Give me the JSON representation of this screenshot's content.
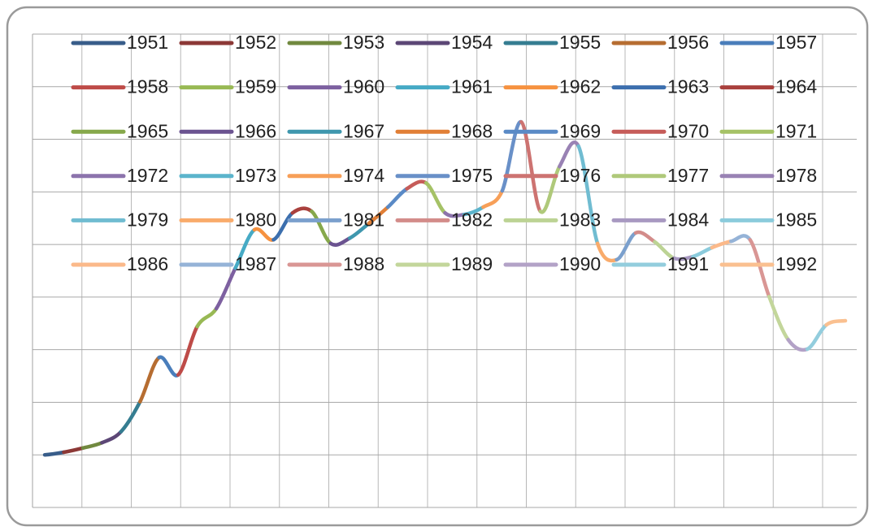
{
  "chart_data": {
    "type": "line",
    "series": [
      {
        "name": "1951",
        "color": "#385d8a"
      },
      {
        "name": "1952",
        "color": "#8c3836"
      },
      {
        "name": "1953",
        "color": "#71893f"
      },
      {
        "name": "1954",
        "color": "#5c4776"
      },
      {
        "name": "1955",
        "color": "#357d91"
      },
      {
        "name": "1956",
        "color": "#b66d31"
      },
      {
        "name": "1957",
        "color": "#4a7ebb"
      },
      {
        "name": "1958",
        "color": "#be4b48"
      },
      {
        "name": "1959",
        "color": "#98b954"
      },
      {
        "name": "1960",
        "color": "#7d60a0"
      },
      {
        "name": "1961",
        "color": "#46aac5"
      },
      {
        "name": "1962",
        "color": "#f69240"
      },
      {
        "name": "1963",
        "color": "#3c6fae"
      },
      {
        "name": "1964",
        "color": "#a9403d"
      },
      {
        "name": "1965",
        "color": "#86a84b"
      },
      {
        "name": "1966",
        "color": "#6b5390"
      },
      {
        "name": "1967",
        "color": "#3f97ae"
      },
      {
        "name": "1968",
        "color": "#e17f36"
      },
      {
        "name": "1969",
        "color": "#5a8ac6"
      },
      {
        "name": "1970",
        "color": "#c65c59"
      },
      {
        "name": "1971",
        "color": "#a5c266"
      },
      {
        "name": "1972",
        "color": "#8c73ac"
      },
      {
        "name": "1973",
        "color": "#5bb4cc"
      },
      {
        "name": "1974",
        "color": "#f79f58"
      },
      {
        "name": "1975",
        "color": "#6990c8"
      },
      {
        "name": "1976",
        "color": "#cd7371"
      },
      {
        "name": "1977",
        "color": "#afc97a"
      },
      {
        "name": "1978",
        "color": "#9982b4"
      },
      {
        "name": "1979",
        "color": "#70bcd1"
      },
      {
        "name": "1980",
        "color": "#f9ab6b"
      },
      {
        "name": "1981",
        "color": "#7ba0cd"
      },
      {
        "name": "1982",
        "color": "#d38c8a"
      },
      {
        "name": "1983",
        "color": "#bcd394"
      },
      {
        "name": "1984",
        "color": "#a899c1"
      },
      {
        "name": "1985",
        "color": "#8bcbdc"
      },
      {
        "name": "1986",
        "color": "#fbb98a"
      },
      {
        "name": "1987",
        "color": "#95b3d7"
      },
      {
        "name": "1988",
        "color": "#d99694"
      },
      {
        "name": "1989",
        "color": "#c3d69b"
      },
      {
        "name": "1990",
        "color": "#b3a2c7"
      },
      {
        "name": "1991",
        "color": "#93cddd"
      },
      {
        "name": "1992",
        "color": "#fac090"
      }
    ],
    "values": [
      1.0,
      1.05,
      1.13,
      1.23,
      1.44,
      2.01,
      2.85,
      2.52,
      3.44,
      3.78,
      4.55,
      5.28,
      5.09,
      5.6,
      5.63,
      5.02,
      5.12,
      5.4,
      5.71,
      6.06,
      6.17,
      5.6,
      5.57,
      5.71,
      6.02,
      7.33,
      5.63,
      6.48,
      6.87,
      5.02,
      4.71,
      5.22,
      5.05,
      4.74,
      4.77,
      4.94,
      5.06,
      5.09,
      4.01,
      3.19,
      3.01,
      3.47,
      3.55
    ],
    "ylim": [
      0,
      9
    ],
    "yticks": [
      0,
      1,
      2,
      3,
      4,
      5,
      6,
      7,
      8,
      9
    ],
    "grid": true
  }
}
